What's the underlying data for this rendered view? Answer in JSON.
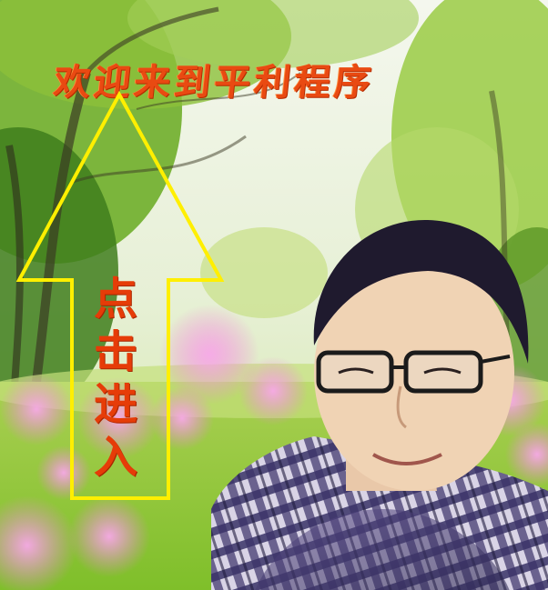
{
  "welcome": {
    "title": "欢迎来到平利程序"
  },
  "enter": {
    "chars": [
      "点",
      "击",
      "进",
      "入"
    ]
  },
  "colors": {
    "title": "#e94a12",
    "arrow": "#ffef00",
    "label": "#e63c08"
  }
}
